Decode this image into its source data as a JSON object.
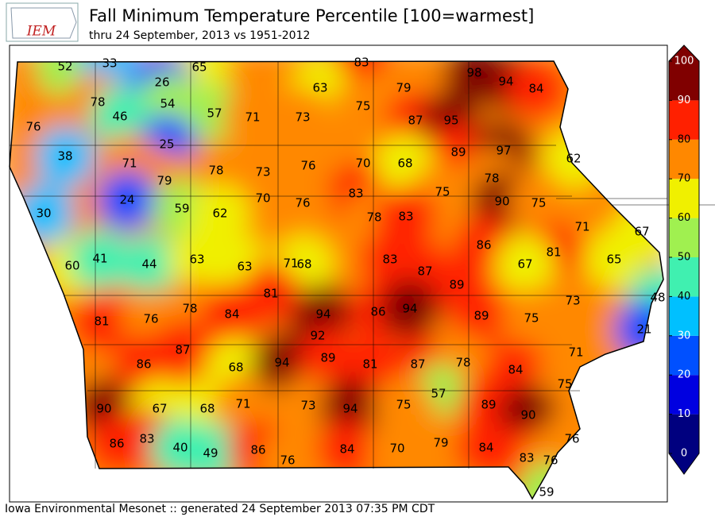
{
  "title": "Fall Minimum Temperature Percentile [100=warmest]",
  "subtitle": "thru 24 September, 2013 vs 1951-2012",
  "logo": "IEM",
  "footer": "Iowa Environmental Mesonet :: generated 24 September 2013 07:35 PM CDT",
  "colorbar": {
    "ticks": [
      0,
      10,
      20,
      30,
      40,
      50,
      60,
      70,
      80,
      90,
      100
    ],
    "colors": [
      "#00007f",
      "#0000e0",
      "#0050ff",
      "#00c0ff",
      "#40f0b0",
      "#a0f050",
      "#f0f000",
      "#ff8800",
      "#ff2000",
      "#800000"
    ]
  },
  "stations": [
    52,
    33,
    65,
    83,
    98,
    94,
    84,
    26,
    63,
    79,
    78,
    54,
    75,
    46,
    57,
    71,
    73,
    87,
    95,
    76,
    25,
    89,
    97,
    38,
    71,
    78,
    73,
    76,
    70,
    68,
    62,
    79,
    78,
    83,
    75,
    24,
    70,
    76,
    90,
    75,
    30,
    59,
    62,
    78,
    83,
    71,
    67,
    86,
    81,
    65,
    60,
    41,
    44,
    63,
    63,
    71,
    68,
    83,
    67,
    87,
    89,
    81,
    73,
    48,
    94,
    86,
    94,
    89,
    75,
    78,
    84,
    81,
    76,
    21,
    92,
    71,
    87,
    86,
    68,
    94,
    89,
    81,
    87,
    78,
    84,
    75,
    57,
    90,
    67,
    68,
    71,
    73,
    94,
    75,
    89,
    90,
    76,
    86,
    83,
    40,
    49,
    86,
    76,
    84,
    70,
    79,
    84,
    83,
    76,
    59
  ]
}
